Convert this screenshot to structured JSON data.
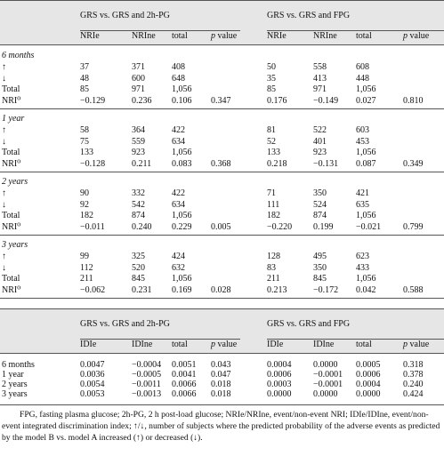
{
  "table1": {
    "groups": [
      "GRS vs. GRS and 2h-PG",
      "GRS vs. GRS and FPG"
    ],
    "columns": [
      "NRIe",
      "NRIne",
      "total",
      "p value",
      "NRIe",
      "NRIne",
      "total",
      "p value"
    ],
    "sections": [
      {
        "title": "6 months",
        "rows": [
          {
            "label": "↑",
            "left": [
              "37",
              "371",
              "408"
            ],
            "right": [
              "50",
              "558",
              "608"
            ]
          },
          {
            "label": "↓",
            "left": [
              "48",
              "600",
              "648"
            ],
            "right": [
              "35",
              "413",
              "448"
            ]
          },
          {
            "label": "Total",
            "left": [
              "85",
              "971",
              "1,056"
            ],
            "right": [
              "85",
              "971",
              "1,056"
            ]
          },
          {
            "label": "NRI⁰",
            "left": [
              "−0.129",
              "0.236",
              "0.106",
              "0.347"
            ],
            "right": [
              "0.176",
              "−0.149",
              "0.027",
              "0.810"
            ]
          }
        ]
      },
      {
        "title": "1 year",
        "rows": [
          {
            "label": "↑",
            "left": [
              "58",
              "364",
              "422"
            ],
            "right": [
              "81",
              "522",
              "603"
            ]
          },
          {
            "label": "↓",
            "left": [
              "75",
              "559",
              "634"
            ],
            "right": [
              "52",
              "401",
              "453"
            ]
          },
          {
            "label": "Total",
            "left": [
              "133",
              "923",
              "1,056"
            ],
            "right": [
              "133",
              "923",
              "1,056"
            ]
          },
          {
            "label": "NRI⁰",
            "left": [
              "−0.128",
              "0.211",
              "0.083",
              "0.368"
            ],
            "right": [
              "0.218",
              "−0.131",
              "0.087",
              "0.349"
            ]
          }
        ]
      },
      {
        "title": "2 years",
        "rows": [
          {
            "label": "↑",
            "left": [
              "90",
              "332",
              "422"
            ],
            "right": [
              "71",
              "350",
              "421"
            ]
          },
          {
            "label": "↓",
            "left": [
              "92",
              "542",
              "634"
            ],
            "right": [
              "111",
              "524",
              "635"
            ]
          },
          {
            "label": "Total",
            "left": [
              "182",
              "874",
              "1,056"
            ],
            "right": [
              "182",
              "874",
              "1,056"
            ]
          },
          {
            "label": "NRI⁰",
            "left": [
              "−0.011",
              "0.240",
              "0.229",
              "0.005"
            ],
            "right": [
              "−0.220",
              "0.199",
              "−0.021",
              "0.799"
            ]
          }
        ]
      },
      {
        "title": "3 years",
        "rows": [
          {
            "label": "↑",
            "left": [
              "99",
              "325",
              "424"
            ],
            "right": [
              "128",
              "495",
              "623"
            ]
          },
          {
            "label": "↓",
            "left": [
              "112",
              "520",
              "632"
            ],
            "right": [
              "83",
              "350",
              "433"
            ]
          },
          {
            "label": "Total",
            "left": [
              "211",
              "845",
              "1,056"
            ],
            "right": [
              "211",
              "845",
              "1,056"
            ]
          },
          {
            "label": "NRI⁰",
            "left": [
              "−0.062",
              "0.231",
              "0.169",
              "0.028"
            ],
            "right": [
              "0.213",
              "−0.172",
              "0.042",
              "0.588"
            ]
          }
        ]
      }
    ]
  },
  "table2": {
    "groups": [
      "GRS vs. GRS and 2h-PG",
      "GRS vs. GRS and FPG"
    ],
    "columns": [
      "IDIe",
      "IDIne",
      "total",
      "p value",
      "IDIe",
      "IDIne",
      "total",
      "p value"
    ],
    "rows": [
      {
        "label": "6 months",
        "left": [
          "0.0047",
          "−0.0004",
          "0.0051",
          "0.043"
        ],
        "right": [
          "0.0004",
          "0.0000",
          "0.0005",
          "0.318"
        ]
      },
      {
        "label": "1 year",
        "left": [
          "0.0036",
          "−0.0005",
          "0.0041",
          "0.047"
        ],
        "right": [
          "0.0006",
          "−0.0001",
          "0.0006",
          "0.378"
        ]
      },
      {
        "label": "2 years",
        "left": [
          "0.0054",
          "−0.0011",
          "0.0066",
          "0.018"
        ],
        "right": [
          "0.0003",
          "−0.0001",
          "0.0004",
          "0.240"
        ]
      },
      {
        "label": "3 years",
        "left": [
          "0.0053",
          "−0.0013",
          "0.0066",
          "0.018"
        ],
        "right": [
          "0.0000",
          "0.0000",
          "0.0000",
          "0.424"
        ]
      }
    ]
  },
  "footnote": "FPG, fasting plasma glucose; 2h-PG, 2 h post-load glucose; NRIe/NRIne, event/non-event NRI; IDIe/IDIne, event/non-event integrated discrimination index; ↑/↓, number of subjects where the predicted probability of the adverse events as predicted by the model B vs. model A increased (↑) or decreased (↓)."
}
